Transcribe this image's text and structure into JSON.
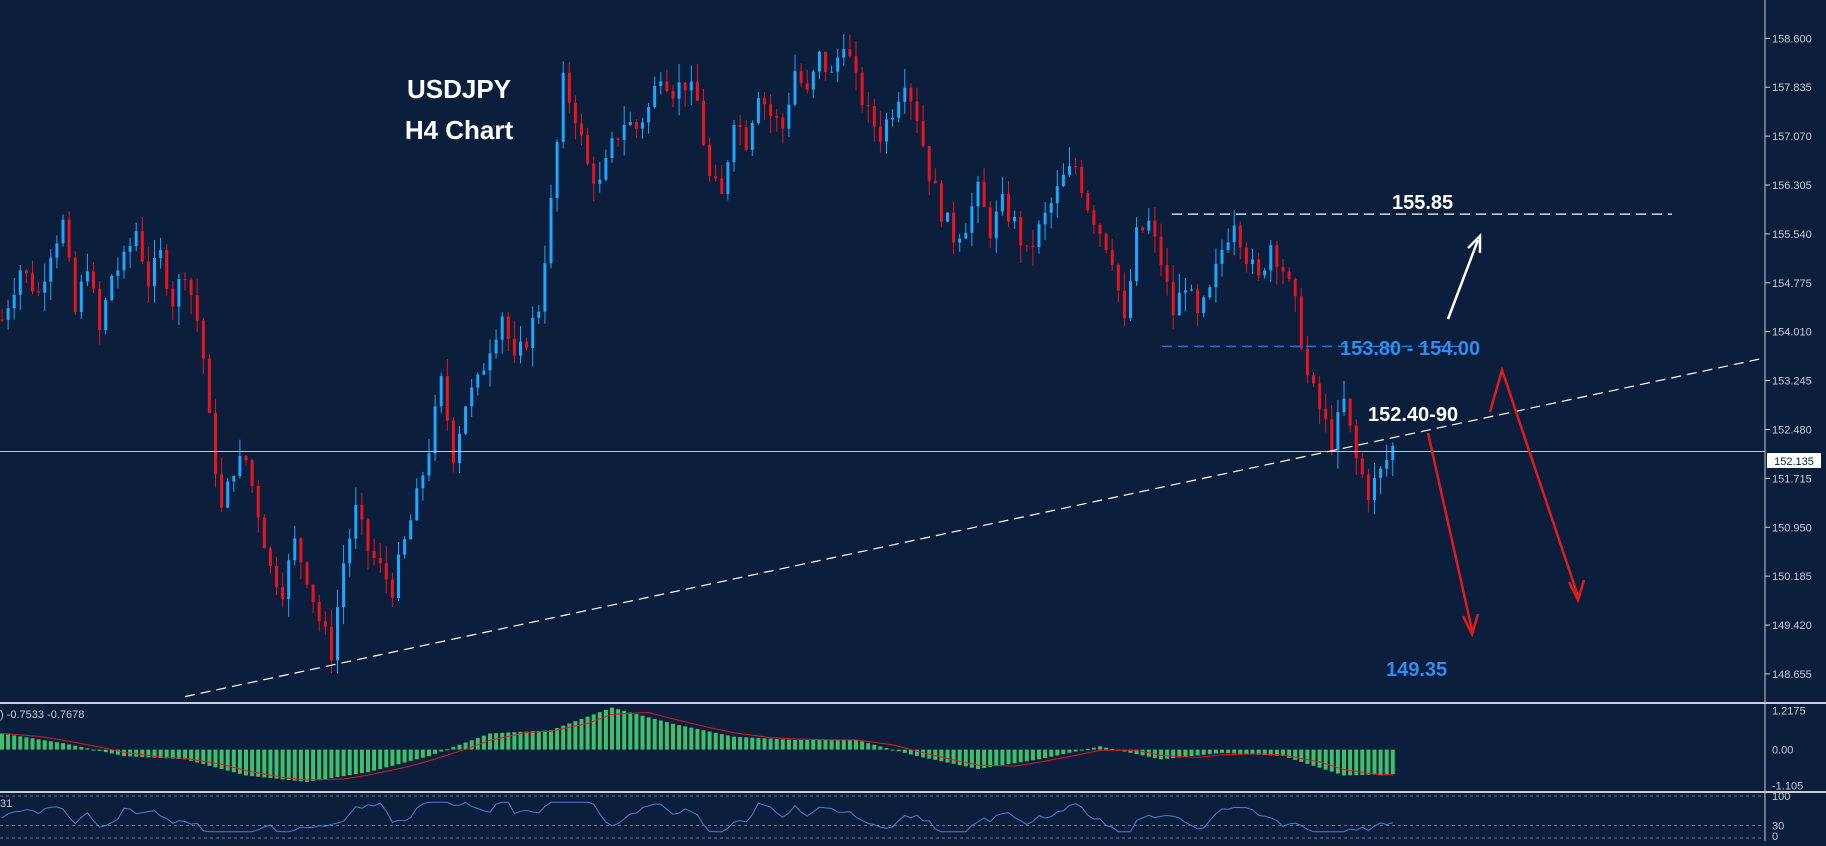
{
  "chart_data": {
    "type": "candlestick",
    "title": "USDJPY",
    "subtitle": "H4 Chart",
    "symbol": "USDJPY",
    "timeframe": "H4",
    "price_axis_ticks": [
      "158.600",
      "157.835",
      "157.070",
      "156.305",
      "155.540",
      "154.775",
      "154.010",
      "153.245",
      "152.480",
      "151.715",
      "150.950",
      "150.185",
      "149.420",
      "148.655"
    ],
    "price_range": [
      148.2,
      159.2
    ],
    "current_price": "152.135",
    "horizontal_level": 152.135,
    "colors": {
      "background": "#0b1e3b",
      "bull": "#1ea7ff",
      "bear": "#e8141e",
      "annotation_white": "#ffffff",
      "annotation_blue": "#2e8ef0",
      "arrow_red": "#e01b1b",
      "histogram": "#3fbf6b",
      "signal": "#e01b1b",
      "rsi": "#4a7fd8"
    },
    "price_path": [
      [
        0,
        154.2
      ],
      [
        3,
        155.0
      ],
      [
        6,
        154.6
      ],
      [
        8,
        155.3
      ],
      [
        10,
        155.7
      ],
      [
        12,
        154.3
      ],
      [
        14,
        155.1
      ],
      [
        16,
        154.0
      ],
      [
        18,
        154.9
      ],
      [
        20,
        155.1
      ],
      [
        22,
        155.6
      ],
      [
        24,
        154.8
      ],
      [
        26,
        155.2
      ],
      [
        28,
        154.5
      ],
      [
        30,
        155.0
      ],
      [
        32,
        154.2
      ],
      [
        33,
        153.6
      ],
      [
        34,
        152.6
      ],
      [
        36,
        151.2
      ],
      [
        38,
        151.9
      ],
      [
        40,
        152.0
      ],
      [
        42,
        151.2
      ],
      [
        44,
        150.3
      ],
      [
        46,
        150.0
      ],
      [
        48,
        150.7
      ],
      [
        50,
        150.2
      ],
      [
        52,
        149.5
      ],
      [
        54,
        149.0
      ],
      [
        56,
        150.4
      ],
      [
        58,
        151.2
      ],
      [
        60,
        150.6
      ],
      [
        62,
        150.3
      ],
      [
        64,
        150.0
      ],
      [
        66,
        150.7
      ],
      [
        68,
        151.4
      ],
      [
        70,
        152.2
      ],
      [
        72,
        153.2
      ],
      [
        74,
        152.1
      ],
      [
        76,
        152.9
      ],
      [
        78,
        153.2
      ],
      [
        80,
        153.8
      ],
      [
        82,
        154.3
      ],
      [
        84,
        153.5
      ],
      [
        86,
        153.9
      ],
      [
        88,
        154.4
      ],
      [
        90,
        156.0
      ],
      [
        92,
        157.9
      ],
      [
        94,
        157.4
      ],
      [
        96,
        156.6
      ],
      [
        98,
        156.3
      ],
      [
        100,
        156.9
      ],
      [
        102,
        157.3
      ],
      [
        104,
        157.2
      ],
      [
        106,
        157.5
      ],
      [
        108,
        158.1
      ],
      [
        110,
        157.8
      ],
      [
        112,
        157.9
      ],
      [
        114,
        157.6
      ],
      [
        116,
        156.4
      ],
      [
        118,
        156.1
      ],
      [
        120,
        157.4
      ],
      [
        122,
        157.0
      ],
      [
        124,
        157.8
      ],
      [
        126,
        157.4
      ],
      [
        128,
        157.2
      ],
      [
        130,
        158.1
      ],
      [
        132,
        157.7
      ],
      [
        134,
        158.3
      ],
      [
        136,
        158.0
      ],
      [
        138,
        158.6
      ],
      [
        140,
        157.9
      ],
      [
        142,
        157.4
      ],
      [
        144,
        157.1
      ],
      [
        146,
        157.5
      ],
      [
        148,
        158.0
      ],
      [
        150,
        157.4
      ],
      [
        152,
        156.5
      ],
      [
        154,
        155.9
      ],
      [
        156,
        155.5
      ],
      [
        158,
        155.7
      ],
      [
        160,
        156.2
      ],
      [
        162,
        155.6
      ],
      [
        164,
        156.0
      ],
      [
        166,
        155.7
      ],
      [
        168,
        155.2
      ],
      [
        170,
        155.6
      ],
      [
        172,
        156.0
      ],
      [
        174,
        156.4
      ],
      [
        176,
        156.6
      ],
      [
        178,
        156.0
      ],
      [
        180,
        155.6
      ],
      [
        182,
        155.2
      ],
      [
        184,
        154.1
      ],
      [
        186,
        155.5
      ],
      [
        188,
        155.7
      ],
      [
        190,
        155.1
      ],
      [
        192,
        154.3
      ],
      [
        194,
        154.8
      ],
      [
        196,
        154.2
      ],
      [
        198,
        154.6
      ],
      [
        200,
        155.3
      ],
      [
        202,
        155.8
      ],
      [
        204,
        155.2
      ],
      [
        206,
        154.8
      ],
      [
        208,
        155.4
      ],
      [
        210,
        155.0
      ],
      [
        212,
        154.4
      ],
      [
        213,
        153.9
      ],
      [
        214,
        153.3
      ],
      [
        216,
        152.8
      ],
      [
        218,
        152.3
      ],
      [
        220,
        152.9
      ],
      [
        222,
        152.0
      ],
      [
        224,
        151.5
      ],
      [
        226,
        151.8
      ],
      [
        228,
        152.2
      ]
    ],
    "annotations": [
      {
        "text": "155.85",
        "kind": "resistance"
      },
      {
        "text": "153.80 - 154.00",
        "kind": "support-zone"
      },
      {
        "text": "152.40-90",
        "kind": "pivot"
      },
      {
        "text": "149.35",
        "kind": "target"
      }
    ],
    "levels": {
      "resistance": 155.85,
      "zone_top": 154.0,
      "trendline_start": 148.3,
      "trendline_end": 153.6
    },
    "macd": {
      "label": ") -0.7533 -0.7678",
      "ticks": [
        "1.2175",
        "0.00",
        "-1.105"
      ],
      "range": [
        -1.25,
        1.35
      ],
      "histogram_path": [
        [
          0,
          0.5
        ],
        [
          10,
          0.2
        ],
        [
          20,
          -0.2
        ],
        [
          30,
          -0.3
        ],
        [
          40,
          -0.8
        ],
        [
          50,
          -1.0
        ],
        [
          60,
          -0.7
        ],
        [
          70,
          -0.2
        ],
        [
          80,
          0.5
        ],
        [
          90,
          0.6
        ],
        [
          100,
          1.3
        ],
        [
          110,
          0.8
        ],
        [
          120,
          0.4
        ],
        [
          130,
          0.3
        ],
        [
          140,
          0.3
        ],
        [
          150,
          -0.2
        ],
        [
          160,
          -0.6
        ],
        [
          170,
          -0.3
        ],
        [
          180,
          0.1
        ],
        [
          190,
          -0.3
        ],
        [
          200,
          -0.1
        ],
        [
          210,
          -0.2
        ],
        [
          220,
          -0.8
        ],
        [
          228,
          -0.76
        ]
      ]
    },
    "rsi": {
      "label": "31",
      "ticks": [
        "100",
        "30",
        "0"
      ],
      "range": [
        0,
        100
      ]
    }
  }
}
